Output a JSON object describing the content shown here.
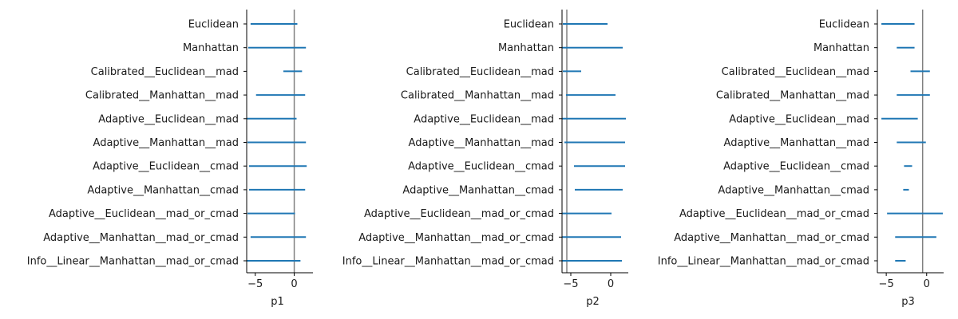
{
  "colors": {
    "series": "#1f77b4",
    "zero_line": "#808080",
    "axis": "#000000"
  },
  "chart_data": [
    {
      "type": "interval",
      "xlabel": "p1",
      "xticks": [
        -5,
        0
      ],
      "xlim": [
        -6.1,
        2.4
      ],
      "grid": false,
      "zero_line": 0,
      "categories": [
        "Euclidean",
        "Manhattan",
        "Calibrated__Euclidean__mad",
        "Calibrated__Manhattan__mad",
        "Adaptive__Euclidean__mad",
        "Adaptive__Manhattan__mad",
        "Adaptive__Euclidean__cmad",
        "Adaptive__Manhattan__cmad",
        "Adaptive__Euclidean__mad_or_cmad",
        "Adaptive__Manhattan__mad_or_cmad",
        "Info__Linear__Manhattan__mad_or_cmad"
      ],
      "intervals": [
        [
          -5.6,
          0.4
        ],
        [
          -5.9,
          1.5
        ],
        [
          -1.4,
          1.0
        ],
        [
          -4.9,
          1.4
        ],
        [
          -6.1,
          0.3
        ],
        [
          -6.0,
          1.5
        ],
        [
          -5.8,
          1.6
        ],
        [
          -5.8,
          1.4
        ],
        [
          -6.0,
          0.1
        ],
        [
          -5.6,
          1.5
        ],
        [
          -6.3,
          0.8
        ]
      ]
    },
    {
      "type": "interval",
      "xlabel": "p2",
      "xticks": [
        -5,
        0
      ],
      "xlim": [
        -6.1,
        2.2
      ],
      "grid": false,
      "zero_line": -5.5,
      "categories": [
        "Euclidean",
        "Manhattan",
        "Calibrated__Euclidean__mad",
        "Calibrated__Manhattan__mad",
        "Adaptive__Euclidean__mad",
        "Adaptive__Manhattan__mad",
        "Adaptive__Euclidean__cmad",
        "Adaptive__Manhattan__cmad",
        "Adaptive__Euclidean__mad_or_cmad",
        "Adaptive__Manhattan__mad_or_cmad",
        "Info__Linear__Manhattan__mad_or_cmad"
      ],
      "intervals": [
        [
          -6.0,
          -0.4
        ],
        [
          -6.1,
          1.5
        ],
        [
          -6.0,
          -3.7
        ],
        [
          -5.6,
          0.6
        ],
        [
          -6.3,
          1.9
        ],
        [
          -5.8,
          1.8
        ],
        [
          -4.6,
          1.8
        ],
        [
          -4.5,
          1.5
        ],
        [
          -6.1,
          0.1
        ],
        [
          -6.4,
          1.3
        ],
        [
          -6.1,
          1.4
        ]
      ]
    },
    {
      "type": "interval",
      "xlabel": "p3",
      "xticks": [
        -5,
        0
      ],
      "xlim": [
        -6.1,
        2.1
      ],
      "grid": false,
      "zero_line": -0.5,
      "categories": [
        "Euclidean",
        "Manhattan",
        "Calibrated__Euclidean__mad",
        "Calibrated__Manhattan__mad",
        "Adaptive__Euclidean__mad",
        "Adaptive__Manhattan__mad",
        "Adaptive__Euclidean__cmad",
        "Adaptive__Manhattan__cmad",
        "Adaptive__Euclidean__mad_or_cmad",
        "Adaptive__Manhattan__mad_or_cmad",
        "Info__Linear__Manhattan__mad_or_cmad"
      ],
      "intervals": [
        [
          -5.6,
          -1.5
        ],
        [
          -3.7,
          -1.5
        ],
        [
          -2.0,
          0.4
        ],
        [
          -3.7,
          0.4
        ],
        [
          -5.6,
          -1.1
        ],
        [
          -3.7,
          -0.1
        ],
        [
          -2.8,
          -1.8
        ],
        [
          -2.9,
          -2.2
        ],
        [
          -4.9,
          2.0
        ],
        [
          -3.9,
          1.2
        ],
        [
          -3.9,
          -2.6
        ]
      ]
    }
  ]
}
